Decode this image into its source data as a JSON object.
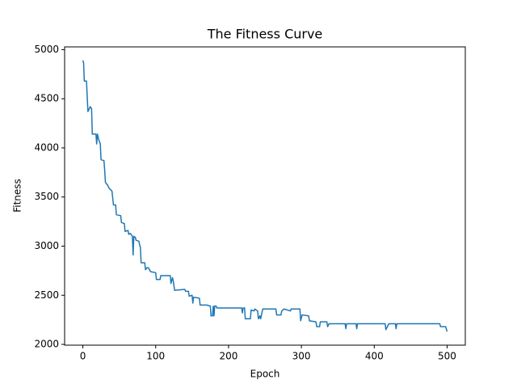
{
  "chart_data": {
    "type": "line",
    "title": "The Fitness Curve",
    "x_label": "Epoch",
    "y_label": "Fitness",
    "xlim": [
      -25,
      525
    ],
    "xticks": [
      0,
      100,
      200,
      300,
      400,
      500
    ],
    "ylim": [
      1992,
      5028
    ],
    "yticks": [
      2000,
      2500,
      3000,
      3500,
      4000,
      4500,
      5000
    ],
    "grid": false,
    "series": [
      {
        "color": "#1f77b4",
        "x": [
          0,
          1,
          2,
          5,
          7,
          9,
          10,
          12,
          13,
          18,
          19,
          20,
          22,
          24,
          25,
          29,
          30,
          31,
          34,
          36,
          40,
          42,
          45,
          46,
          52,
          53,
          57,
          58,
          62,
          63,
          65,
          68,
          69,
          70,
          72,
          73,
          77,
          78,
          79,
          80,
          85,
          86,
          88,
          90,
          93,
          100,
          101,
          106,
          107,
          120,
          121,
          123,
          124,
          126,
          140,
          141,
          145,
          146,
          150,
          151,
          152,
          160,
          161,
          170,
          175,
          176,
          178,
          179,
          180,
          181,
          183,
          184,
          218,
          219,
          220,
          222,
          223,
          230,
          231,
          235,
          236,
          240,
          241,
          243,
          244,
          247,
          265,
          266,
          272,
          273,
          276,
          285,
          286,
          298,
          299,
          301,
          310,
          311,
          320,
          321,
          325,
          326,
          335,
          336,
          338,
          345,
          360,
          361,
          362,
          375,
          376,
          377,
          415,
          416,
          420,
          429,
          430,
          431,
          490,
          491,
          495,
          498,
          500
        ],
        "values": [
          4890,
          4870,
          4680,
          4680,
          4370,
          4400,
          4420,
          4400,
          4140,
          4140,
          4040,
          4140,
          4080,
          4040,
          3880,
          3870,
          3770,
          3650,
          3620,
          3590,
          3560,
          3420,
          3420,
          3320,
          3310,
          3240,
          3230,
          3150,
          3160,
          3120,
          3130,
          3100,
          2910,
          3100,
          3090,
          3060,
          3050,
          3010,
          2990,
          2830,
          2830,
          2760,
          2780,
          2780,
          2740,
          2730,
          2660,
          2660,
          2700,
          2700,
          2620,
          2680,
          2650,
          2550,
          2560,
          2540,
          2540,
          2490,
          2500,
          2420,
          2480,
          2470,
          2400,
          2400,
          2390,
          2290,
          2290,
          2390,
          2290,
          2390,
          2390,
          2370,
          2370,
          2320,
          2370,
          2370,
          2260,
          2260,
          2350,
          2340,
          2360,
          2340,
          2260,
          2290,
          2260,
          2360,
          2360,
          2300,
          2300,
          2340,
          2360,
          2340,
          2360,
          2360,
          2240,
          2300,
          2290,
          2240,
          2230,
          2180,
          2180,
          2230,
          2230,
          2180,
          2210,
          2210,
          2210,
          2160,
          2210,
          2210,
          2160,
          2210,
          2210,
          2150,
          2210,
          2210,
          2160,
          2210,
          2210,
          2180,
          2180,
          2180,
          2130
        ]
      }
    ]
  }
}
